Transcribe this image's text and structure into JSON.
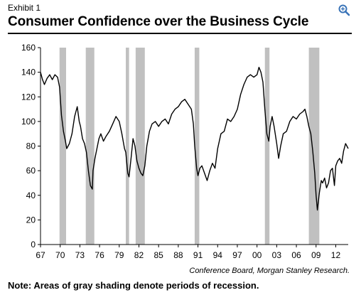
{
  "header": {
    "exhibit": "Exhibit 1",
    "title": "Consumer Confidence over the Business Cycle"
  },
  "footer": {
    "source": "Conference Board, Morgan Stanley Research.",
    "note": "Note: Areas of gray shading denote periods of recession."
  },
  "icons": {
    "zoom": "zoom-in-icon"
  },
  "colors": {
    "line": "#000000",
    "recession": "#c0c0c0",
    "zoom": "#3a74b8"
  },
  "chart_data": {
    "type": "line",
    "title": "Consumer Confidence over the Business Cycle",
    "xlabel": "",
    "ylabel": "",
    "xlim": [
      1967,
      2013.9
    ],
    "ylim": [
      0,
      160
    ],
    "yticks": [
      0,
      20,
      40,
      60,
      80,
      100,
      120,
      140,
      160
    ],
    "xticks": [
      "67",
      "70",
      "73",
      "76",
      "79",
      "82",
      "85",
      "88",
      "91",
      "94",
      "97",
      "00",
      "03",
      "06",
      "09",
      "12"
    ],
    "xtick_years": [
      1967,
      1970,
      1973,
      1976,
      1979,
      1982,
      1985,
      1988,
      1991,
      1994,
      1997,
      2000,
      2003,
      2006,
      2009,
      2012
    ],
    "grid": false,
    "legend": "none",
    "recessions": [
      [
        1969.9,
        1970.9
      ],
      [
        1973.9,
        1975.2
      ],
      [
        1980.0,
        1980.5
      ],
      [
        1981.5,
        1982.9
      ],
      [
        1990.5,
        1991.2
      ],
      [
        2001.2,
        2001.9
      ],
      [
        2007.9,
        2009.5
      ]
    ],
    "series": [
      {
        "x": [
          1967.0,
          1967.3,
          1967.6,
          1968.0,
          1968.4,
          1968.8,
          1969.2,
          1969.6,
          1969.9,
          1970.2,
          1970.5,
          1970.8,
          1971.0,
          1971.4,
          1971.8,
          1972.2,
          1972.6,
          1972.9,
          1973.1,
          1973.4,
          1973.7,
          1974.0,
          1974.3,
          1974.6,
          1974.9,
          1975.0,
          1975.3,
          1975.6,
          1975.9,
          1976.2,
          1976.6,
          1977.0,
          1977.5,
          1978.0,
          1978.5,
          1979.0,
          1979.4,
          1979.8,
          1980.0,
          1980.3,
          1980.5,
          1980.8,
          1981.1,
          1981.4,
          1981.7,
          1982.0,
          1982.3,
          1982.6,
          1982.9,
          1983.2,
          1983.6,
          1984.0,
          1984.5,
          1985.0,
          1985.5,
          1986.0,
          1986.5,
          1987.0,
          1987.5,
          1988.0,
          1988.5,
          1989.0,
          1989.5,
          1990.0,
          1990.3,
          1990.5,
          1990.8,
          1991.0,
          1991.3,
          1991.6,
          1992.0,
          1992.4,
          1992.8,
          1993.2,
          1993.6,
          1994.0,
          1994.5,
          1995.0,
          1995.5,
          1996.0,
          1996.5,
          1997.0,
          1997.5,
          1998.0,
          1998.5,
          1999.0,
          1999.5,
          2000.0,
          2000.3,
          2000.6,
          2000.9,
          2001.2,
          2001.5,
          2001.8,
          2002.0,
          2002.3,
          2002.6,
          2003.0,
          2003.3,
          2003.6,
          2004.0,
          2004.5,
          2005.0,
          2005.5,
          2006.0,
          2006.5,
          2007.0,
          2007.3,
          2007.6,
          2007.9,
          2008.2,
          2008.5,
          2008.8,
          2009.0,
          2009.2,
          2009.5,
          2009.8,
          2010.0,
          2010.3,
          2010.6,
          2010.9,
          2011.2,
          2011.5,
          2011.8,
          2012.0,
          2012.3,
          2012.6,
          2012.9,
          2013.2,
          2013.5,
          2013.9
        ],
        "values": [
          140,
          134,
          130,
          135,
          138,
          134,
          138,
          136,
          128,
          105,
          92,
          84,
          78,
          82,
          90,
          104,
          112,
          100,
          96,
          86,
          82,
          75,
          60,
          48,
          45,
          60,
          70,
          78,
          86,
          90,
          84,
          88,
          92,
          98,
          104,
          100,
          90,
          78,
          75,
          58,
          55,
          70,
          86,
          80,
          68,
          62,
          58,
          56,
          64,
          80,
          92,
          98,
          100,
          96,
          100,
          102,
          98,
          106,
          110,
          112,
          116,
          118,
          114,
          110,
          98,
          80,
          62,
          56,
          62,
          64,
          58,
          52,
          60,
          66,
          62,
          78,
          90,
          92,
          102,
          100,
          104,
          110,
          122,
          130,
          136,
          138,
          136,
          138,
          144,
          140,
          132,
          110,
          90,
          84,
          96,
          104,
          96,
          82,
          70,
          80,
          90,
          92,
          100,
          104,
          102,
          106,
          108,
          110,
          104,
          96,
          90,
          76,
          58,
          40,
          28,
          42,
          52,
          50,
          54,
          46,
          50,
          60,
          62,
          48,
          64,
          68,
          70,
          66,
          76,
          82,
          78
        ]
      }
    ]
  }
}
